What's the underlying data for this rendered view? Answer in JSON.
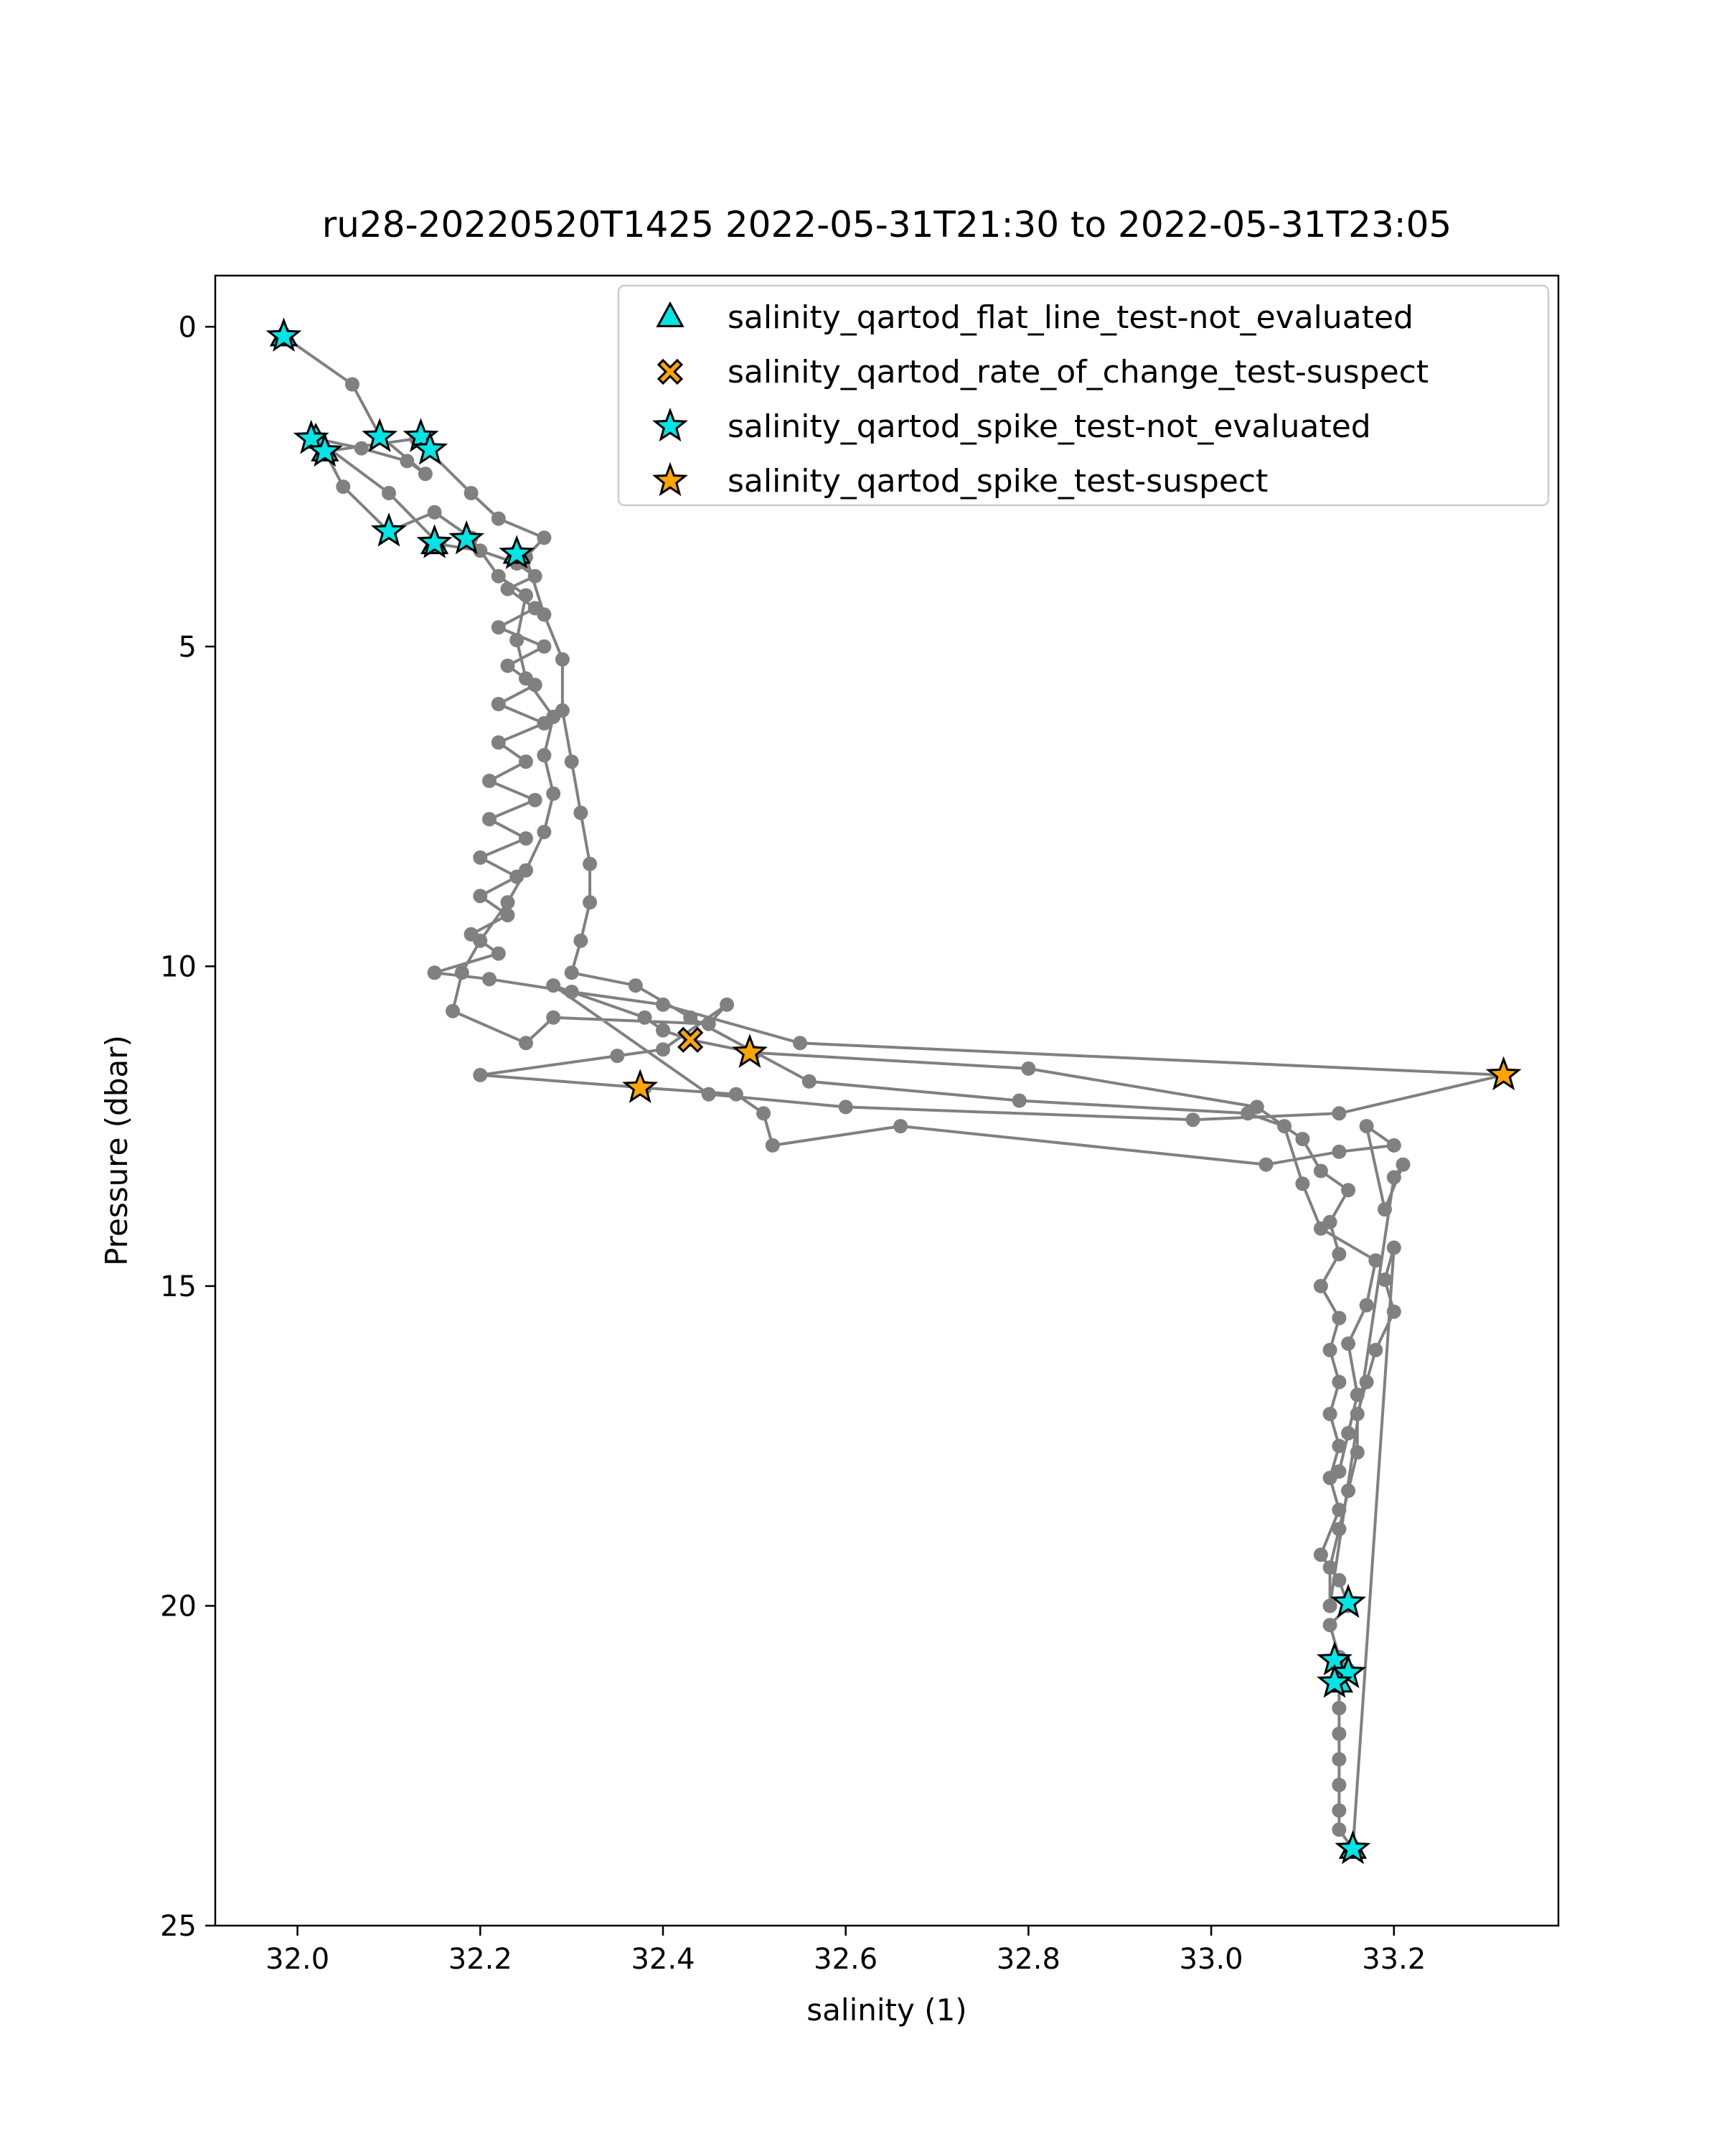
{
  "chart_data": {
    "type": "scatter",
    "title": "ru28-20220520T1425 2022-05-31T21:30 to 2022-05-31T23:05",
    "xlabel": "salinity (1)",
    "ylabel": "Pressure (dbar)",
    "xlim": [
      31.91,
      33.38
    ],
    "ylim": [
      25,
      -0.8
    ],
    "y_inverted": true,
    "x_ticks": [
      32.0,
      32.2,
      32.4,
      32.6,
      32.8,
      33.0,
      33.2
    ],
    "x_tick_labels": [
      "32.0",
      "32.2",
      "32.4",
      "32.6",
      "32.8",
      "33.0",
      "33.2"
    ],
    "y_ticks": [
      0,
      5,
      10,
      15,
      20,
      25
    ],
    "y_tick_labels": [
      "0",
      "5",
      "10",
      "15",
      "20",
      "25"
    ],
    "grid": false,
    "legend_position": "top-right",
    "profile_line_color": "#808080",
    "profile": [
      [
        31.985,
        0.15
      ],
      [
        32.06,
        0.9
      ],
      [
        32.09,
        1.7
      ],
      [
        32.14,
        2.3
      ],
      [
        32.12,
        2.1
      ],
      [
        32.07,
        1.9
      ],
      [
        32.02,
        1.75
      ],
      [
        32.1,
        2.6
      ],
      [
        32.155,
        3.4
      ],
      [
        32.2,
        3.5
      ],
      [
        32.24,
        3.7
      ],
      [
        32.26,
        3.9
      ],
      [
        32.23,
        4.1
      ],
      [
        32.26,
        4.4
      ],
      [
        32.22,
        4.7
      ],
      [
        32.27,
        5.0
      ],
      [
        32.23,
        5.3
      ],
      [
        32.26,
        5.6
      ],
      [
        32.22,
        5.9
      ],
      [
        32.27,
        6.2
      ],
      [
        32.22,
        6.5
      ],
      [
        32.25,
        6.8
      ],
      [
        32.21,
        7.1
      ],
      [
        32.26,
        7.4
      ],
      [
        32.21,
        7.7
      ],
      [
        32.25,
        8.0
      ],
      [
        32.2,
        8.3
      ],
      [
        32.24,
        8.6
      ],
      [
        32.2,
        8.9
      ],
      [
        32.23,
        9.2
      ],
      [
        32.19,
        9.5
      ],
      [
        32.22,
        9.8
      ],
      [
        32.15,
        10.1
      ],
      [
        32.21,
        10.2
      ],
      [
        32.3,
        10.4
      ],
      [
        32.4,
        10.6
      ],
      [
        32.55,
        11.2
      ],
      [
        33.32,
        11.7
      ],
      [
        33.14,
        12.3
      ],
      [
        32.98,
        12.4
      ],
      [
        32.6,
        12.2
      ],
      [
        32.45,
        12.0
      ],
      [
        32.28,
        10.3
      ],
      [
        32.38,
        10.8
      ],
      [
        32.4,
        11.0
      ],
      [
        32.43,
        11.15
      ],
      [
        32.5,
        11.35
      ],
      [
        32.8,
        11.6
      ],
      [
        33.05,
        12.2
      ],
      [
        33.1,
        12.7
      ],
      [
        33.12,
        13.2
      ],
      [
        33.15,
        13.5
      ],
      [
        33.13,
        14.0
      ],
      [
        33.14,
        14.5
      ],
      [
        33.12,
        15.0
      ],
      [
        33.14,
        15.5
      ],
      [
        33.13,
        16.0
      ],
      [
        33.14,
        16.5
      ],
      [
        33.13,
        17.0
      ],
      [
        33.14,
        17.5
      ],
      [
        33.13,
        18.0
      ],
      [
        33.14,
        18.5
      ],
      [
        33.12,
        19.2
      ],
      [
        33.14,
        19.6
      ],
      [
        33.15,
        20.0
      ],
      [
        33.13,
        20.3
      ],
      [
        33.14,
        20.8
      ],
      [
        33.15,
        21.0
      ],
      [
        33.14,
        21.2
      ],
      [
        33.14,
        21.6
      ],
      [
        33.14,
        22.0
      ],
      [
        33.14,
        22.4
      ],
      [
        33.14,
        22.8
      ],
      [
        33.14,
        23.2
      ],
      [
        33.14,
        23.5
      ],
      [
        33.155,
        23.8
      ],
      [
        33.2,
        14.4
      ],
      [
        33.19,
        14.9
      ],
      [
        33.2,
        15.4
      ],
      [
        33.18,
        16.0
      ],
      [
        33.17,
        16.5
      ],
      [
        33.16,
        17.0
      ],
      [
        33.16,
        17.6
      ],
      [
        33.15,
        18.2
      ],
      [
        33.14,
        18.8
      ],
      [
        33.13,
        19.4
      ],
      [
        33.13,
        20.0
      ],
      [
        33.2,
        13.3
      ],
      [
        33.21,
        13.1
      ],
      [
        33.19,
        13.8
      ],
      [
        33.17,
        12.5
      ],
      [
        33.2,
        12.8
      ],
      [
        33.14,
        12.9
      ],
      [
        33.06,
        13.1
      ],
      [
        32.66,
        12.5
      ],
      [
        32.52,
        12.8
      ],
      [
        32.51,
        12.3
      ],
      [
        32.48,
        12.0
      ],
      [
        32.38,
        11.9
      ],
      [
        32.2,
        11.7
      ],
      [
        32.35,
        11.4
      ],
      [
        32.4,
        11.3
      ],
      [
        32.47,
        10.6
      ],
      [
        32.45,
        10.9
      ],
      [
        32.28,
        10.8
      ],
      [
        32.25,
        11.2
      ],
      [
        32.17,
        10.7
      ],
      [
        32.18,
        10.1
      ],
      [
        32.2,
        9.6
      ],
      [
        32.23,
        9.0
      ],
      [
        32.25,
        8.5
      ],
      [
        32.27,
        7.9
      ],
      [
        32.28,
        7.3
      ],
      [
        32.27,
        6.7
      ],
      [
        32.28,
        6.1
      ],
      [
        32.25,
        5.5
      ],
      [
        32.24,
        4.9
      ],
      [
        32.25,
        4.2
      ],
      [
        32.22,
        3.9
      ],
      [
        32.19,
        3.3
      ],
      [
        32.15,
        2.9
      ],
      [
        32.1,
        3.2
      ],
      [
        32.05,
        2.5
      ],
      [
        32.03,
        1.95
      ],
      [
        32.13,
        1.75
      ],
      [
        32.19,
        2.6
      ],
      [
        32.22,
        3.0
      ],
      [
        32.27,
        3.3
      ],
      [
        32.25,
        3.6
      ],
      [
        32.27,
        4.5
      ],
      [
        32.29,
        5.2
      ],
      [
        32.29,
        6.0
      ],
      [
        32.3,
        6.8
      ],
      [
        32.31,
        7.6
      ],
      [
        32.32,
        8.4
      ],
      [
        32.32,
        9.0
      ],
      [
        32.31,
        9.6
      ],
      [
        32.3,
        10.1
      ],
      [
        32.37,
        10.3
      ],
      [
        32.43,
        10.8
      ],
      [
        32.56,
        11.8
      ],
      [
        32.79,
        12.1
      ],
      [
        33.04,
        12.3
      ],
      [
        33.08,
        12.5
      ],
      [
        33.1,
        13.4
      ],
      [
        33.12,
        14.1
      ],
      [
        33.18,
        14.6
      ],
      [
        33.17,
        15.3
      ],
      [
        33.15,
        15.9
      ],
      [
        33.16,
        16.7
      ],
      [
        33.15,
        17.3
      ],
      [
        33.14,
        17.9
      ]
    ],
    "series": [
      {
        "name": "salinity_qartod_flat_line_test-not_evaluated",
        "marker": "triangle",
        "color": "#00e5e5",
        "points": [
          [
            31.985,
            0.15
          ],
          [
            32.02,
            1.75
          ],
          [
            32.03,
            1.95
          ],
          [
            32.15,
            3.4
          ],
          [
            32.24,
            3.55
          ],
          [
            33.155,
            23.8
          ],
          [
            33.14,
            21.2
          ]
        ]
      },
      {
        "name": "salinity_qartod_rate_of_change_test-suspect",
        "marker": "x",
        "color": "#ffa500",
        "points": [
          [
            32.43,
            11.15
          ]
        ]
      },
      {
        "name": "salinity_qartod_spike_test-not_evaluated",
        "marker": "star",
        "color": "#00e5e5",
        "points": [
          [
            31.985,
            0.15
          ],
          [
            32.015,
            1.75
          ],
          [
            32.03,
            1.95
          ],
          [
            32.09,
            1.72
          ],
          [
            32.135,
            1.72
          ],
          [
            32.145,
            1.92
          ],
          [
            32.1,
            3.2
          ],
          [
            32.15,
            3.38
          ],
          [
            32.185,
            3.32
          ],
          [
            32.24,
            3.55
          ],
          [
            33.15,
            19.95
          ],
          [
            33.135,
            20.85
          ],
          [
            33.15,
            21.05
          ],
          [
            33.135,
            21.2
          ],
          [
            33.155,
            23.8
          ]
        ]
      },
      {
        "name": "salinity_qartod_spike_test-suspect",
        "marker": "star",
        "color": "#ffa500",
        "points": [
          [
            32.375,
            11.9
          ],
          [
            32.495,
            11.35
          ],
          [
            33.32,
            11.7
          ]
        ]
      }
    ]
  }
}
